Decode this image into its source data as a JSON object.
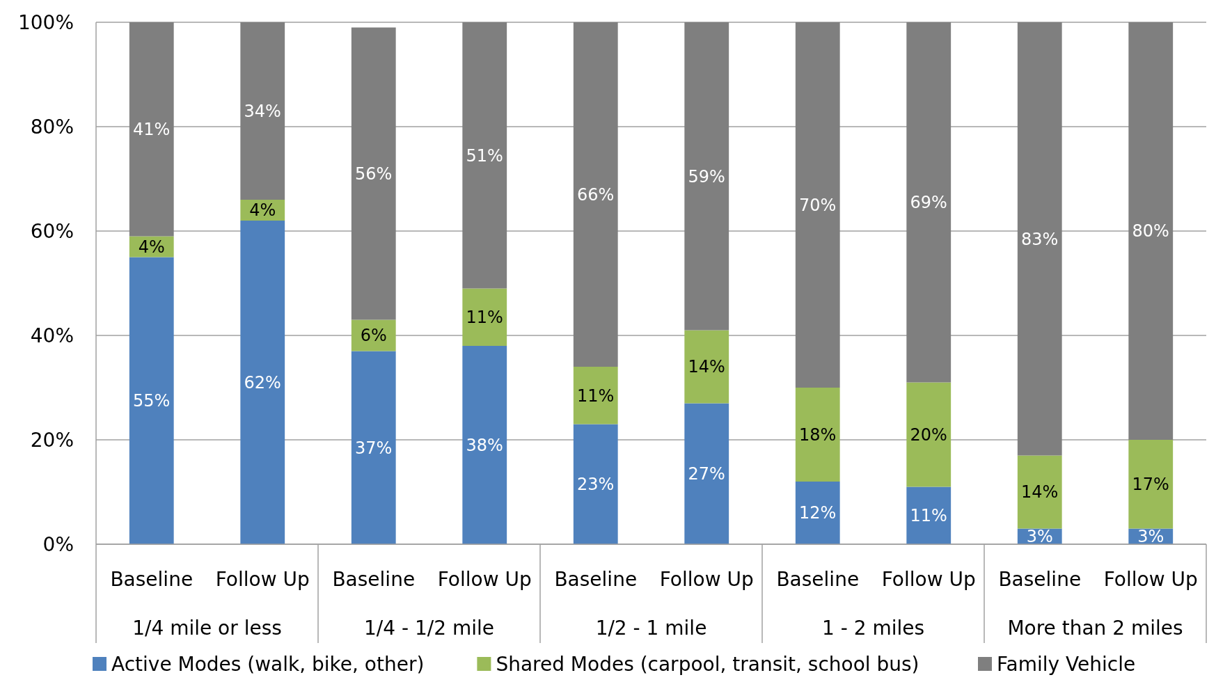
{
  "chart_data": {
    "type": "bar",
    "stacked": true,
    "grid": "y",
    "legend": "bottom",
    "categories": [
      "Baseline",
      "Follow Up",
      "Baseline",
      "Follow Up",
      "Baseline",
      "Follow Up",
      "Baseline",
      "Follow Up",
      "Baseline",
      "Follow Up"
    ],
    "annotations": [
      "1/4 mile or less",
      "1/4 - 1/2 mile",
      "1/2 - 1 mile",
      "1 - 2 miles",
      "More than 2 miles"
    ],
    "ylim": [
      0,
      100
    ],
    "yticks": [
      {
        "value": 0,
        "label": "0%"
      },
      {
        "value": 20,
        "label": "20%"
      },
      {
        "value": 40,
        "label": "40%"
      },
      {
        "value": 60,
        "label": "60%"
      },
      {
        "value": 80,
        "label": "80%"
      },
      {
        "value": 100,
        "label": "100%"
      }
    ],
    "series": [
      {
        "name": "Active Modes (walk, bike, other)",
        "color": "#4f81bd",
        "values": [
          55,
          62,
          37,
          38,
          23,
          27,
          12,
          11,
          3,
          3
        ],
        "value_labels": [
          "55%",
          "62%",
          "37%",
          "38%",
          "23%",
          "27%",
          "12%",
          "11%",
          "3%",
          "3%"
        ]
      },
      {
        "name": "Shared Modes (carpool, transit, school bus)",
        "color": "#9bbb59",
        "values": [
          4,
          4,
          6,
          11,
          11,
          14,
          18,
          20,
          14,
          17
        ],
        "value_labels": [
          "4%",
          "4%",
          "6%",
          "11%",
          "11%",
          "14%",
          "18%",
          "20%",
          "14%",
          "17%"
        ]
      },
      {
        "name": "Family Vehicle",
        "color": "#7f7f7f",
        "values": [
          41,
          34,
          56,
          51,
          66,
          59,
          70,
          69,
          83,
          80
        ],
        "value_labels": [
          "41%",
          "34%",
          "56%",
          "51%",
          "66%",
          "59%",
          "70%",
          "69%",
          "83%",
          "80%"
        ]
      }
    ]
  }
}
